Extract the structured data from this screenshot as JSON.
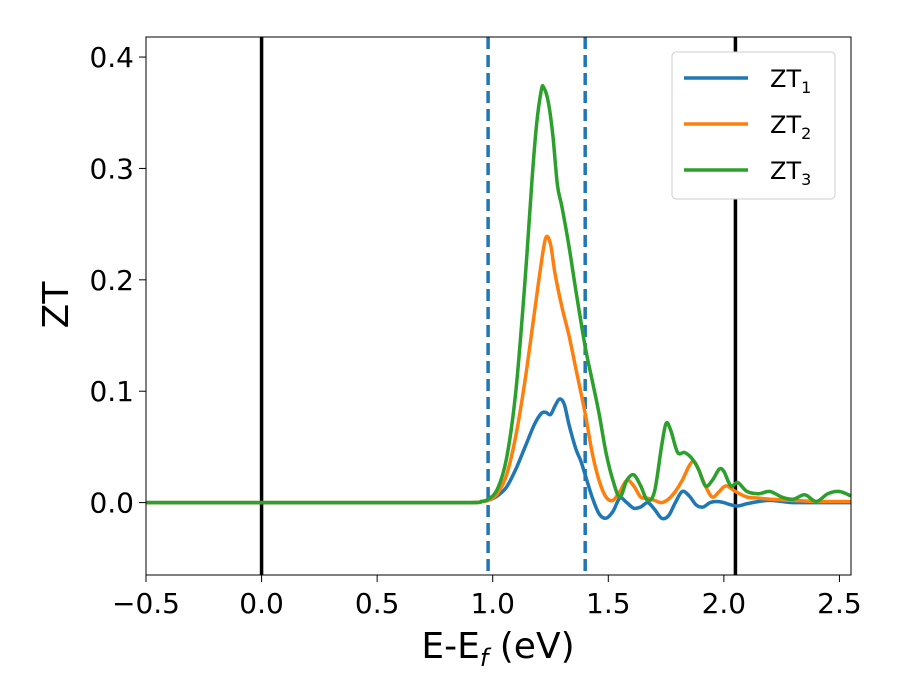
{
  "chart_data": {
    "type": "line",
    "xlabel": "E-E",
    "xlabel_sub": "f",
    "xlabel_unit": " (eV)",
    "ylabel": "ZT",
    "xlim": [
      -0.5,
      2.55
    ],
    "ylim": [
      -0.065,
      0.418
    ],
    "xticks": [
      -0.5,
      0.0,
      0.5,
      1.0,
      1.5,
      2.0,
      2.5
    ],
    "xtick_labels": [
      "−0.5",
      "0.0",
      "0.5",
      "1.0",
      "1.5",
      "2.0",
      "2.5"
    ],
    "yticks": [
      0.0,
      0.1,
      0.2,
      0.3,
      0.4
    ],
    "ytick_labels": [
      "0.0",
      "0.1",
      "0.2",
      "0.3",
      "0.4"
    ],
    "grid": false,
    "legend_position": "top-right",
    "vlines": [
      {
        "x": 0.0,
        "style": "solid",
        "color": "#000000"
      },
      {
        "x": 2.05,
        "style": "solid",
        "color": "#000000"
      },
      {
        "x": 0.98,
        "style": "dashed",
        "color": "#1f77b4"
      },
      {
        "x": 1.4,
        "style": "dashed",
        "color": "#1f77b4"
      }
    ],
    "series": [
      {
        "name": "ZT",
        "sub": "1",
        "color": "#1f77b4",
        "x": [
          -0.5,
          0.0,
          0.5,
          0.9,
          0.95,
          0.98,
          1.02,
          1.06,
          1.1,
          1.14,
          1.18,
          1.21,
          1.23,
          1.25,
          1.27,
          1.29,
          1.31,
          1.33,
          1.36,
          1.38,
          1.4,
          1.43,
          1.46,
          1.49,
          1.52,
          1.55,
          1.58,
          1.61,
          1.64,
          1.67,
          1.7,
          1.73,
          1.76,
          1.79,
          1.82,
          1.85,
          1.88,
          1.91,
          1.94,
          1.97,
          2.0,
          2.03,
          2.06,
          2.1,
          2.15,
          2.2,
          2.25,
          2.3,
          2.4,
          2.55
        ],
        "y": [
          0.0,
          0.0,
          0.0,
          0.0,
          0.001,
          0.002,
          0.006,
          0.014,
          0.03,
          0.05,
          0.07,
          0.08,
          0.081,
          0.079,
          0.087,
          0.093,
          0.088,
          0.07,
          0.048,
          0.038,
          0.025,
          0.005,
          -0.01,
          -0.014,
          -0.008,
          0.004,
          0.0,
          -0.005,
          -0.004,
          0.0,
          -0.006,
          -0.014,
          -0.012,
          0.0,
          0.01,
          0.006,
          -0.002,
          -0.004,
          0.0,
          0.001,
          0.0,
          -0.002,
          -0.003,
          -0.001,
          0.001,
          0.002,
          0.001,
          0.0,
          0.0,
          0.0
        ]
      },
      {
        "name": "ZT",
        "sub": "2",
        "color": "#ff7f0e",
        "x": [
          -0.5,
          0.0,
          0.5,
          0.9,
          0.95,
          0.98,
          1.02,
          1.06,
          1.1,
          1.14,
          1.18,
          1.21,
          1.23,
          1.25,
          1.27,
          1.3,
          1.33,
          1.36,
          1.4,
          1.43,
          1.46,
          1.49,
          1.52,
          1.55,
          1.58,
          1.61,
          1.64,
          1.67,
          1.7,
          1.73,
          1.76,
          1.79,
          1.82,
          1.85,
          1.87,
          1.89,
          1.92,
          1.95,
          1.98,
          2.01,
          2.05,
          2.1,
          2.15,
          2.2,
          2.3,
          2.4,
          2.5,
          2.55
        ],
        "y": [
          0.0,
          0.0,
          0.0,
          0.0,
          0.001,
          0.002,
          0.008,
          0.025,
          0.06,
          0.11,
          0.17,
          0.215,
          0.238,
          0.232,
          0.205,
          0.175,
          0.15,
          0.12,
          0.08,
          0.045,
          0.02,
          0.005,
          0.002,
          0.01,
          0.02,
          0.015,
          0.005,
          0.004,
          0.002,
          0.0,
          0.003,
          0.01,
          0.02,
          0.033,
          0.037,
          0.03,
          0.015,
          0.005,
          0.01,
          0.015,
          0.01,
          0.005,
          0.004,
          0.003,
          0.002,
          0.001,
          0.001,
          0.001
        ]
      },
      {
        "name": "ZT",
        "sub": "3",
        "color": "#2ca02c",
        "x": [
          -0.5,
          0.0,
          0.5,
          0.9,
          0.95,
          0.98,
          1.02,
          1.06,
          1.1,
          1.14,
          1.17,
          1.19,
          1.21,
          1.22,
          1.24,
          1.26,
          1.28,
          1.3,
          1.33,
          1.36,
          1.4,
          1.43,
          1.46,
          1.49,
          1.52,
          1.55,
          1.58,
          1.61,
          1.64,
          1.67,
          1.7,
          1.73,
          1.75,
          1.77,
          1.8,
          1.83,
          1.86,
          1.89,
          1.92,
          1.95,
          1.98,
          2.0,
          2.03,
          2.06,
          2.1,
          2.15,
          2.2,
          2.25,
          2.3,
          2.35,
          2.4,
          2.45,
          2.5,
          2.55
        ],
        "y": [
          0.0,
          0.0,
          0.0,
          0.0,
          0.001,
          0.003,
          0.012,
          0.04,
          0.1,
          0.2,
          0.29,
          0.34,
          0.37,
          0.373,
          0.36,
          0.33,
          0.285,
          0.265,
          0.23,
          0.19,
          0.14,
          0.11,
          0.08,
          0.045,
          0.02,
          0.005,
          0.02,
          0.025,
          0.015,
          0.002,
          0.01,
          0.05,
          0.071,
          0.065,
          0.045,
          0.045,
          0.04,
          0.03,
          0.015,
          0.02,
          0.03,
          0.028,
          0.015,
          0.018,
          0.01,
          0.008,
          0.01,
          0.005,
          0.003,
          0.007,
          0.001,
          0.008,
          0.01,
          0.006
        ]
      }
    ]
  }
}
